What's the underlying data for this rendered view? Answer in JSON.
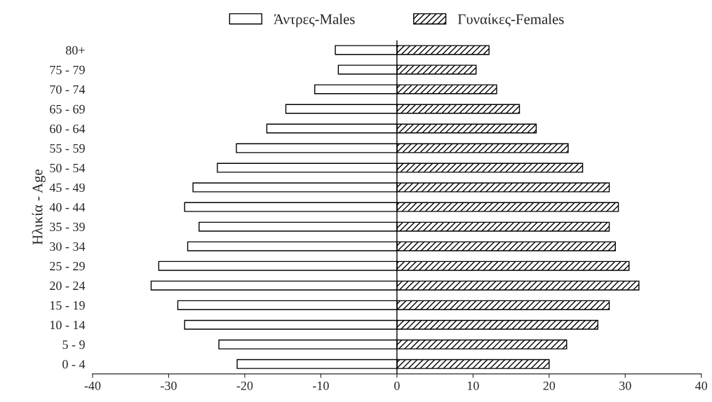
{
  "chart_data": {
    "type": "bar",
    "orientation": "horizontal",
    "ylabel": "Ηλικία - Age",
    "categories": [
      "80+",
      "75 - 79",
      "70 - 74",
      "65 - 69",
      "60 - 64",
      "55 - 59",
      "50 - 54",
      "45 - 49",
      "40 - 44",
      "35 - 39",
      "30 - 34",
      "25 - 29",
      "20 - 24",
      "15 - 19",
      "10 - 14",
      "5 - 9",
      "0 - 4"
    ],
    "series": [
      {
        "name": "Άντρες-Males",
        "color": "#ffffff",
        "values": [
          -8.1,
          -7.7,
          -10.8,
          -14.6,
          -17.1,
          -21.1,
          -23.6,
          -26.8,
          -27.9,
          -26.0,
          -27.5,
          -31.3,
          -32.3,
          -28.8,
          -27.9,
          -23.4,
          -21.0
        ]
      },
      {
        "name": "Γυναίκες-Females",
        "color": "#000000",
        "values": [
          12.1,
          10.4,
          13.1,
          16.1,
          18.3,
          22.5,
          24.4,
          27.9,
          29.1,
          27.9,
          28.7,
          30.5,
          31.8,
          27.9,
          26.4,
          22.3,
          20.0
        ]
      }
    ],
    "xlim": [
      -40,
      40
    ],
    "xticks": [
      -40,
      -30,
      -20,
      -10,
      0,
      10,
      20,
      30,
      40
    ],
    "ref_lines": [
      {
        "axis": "x",
        "value": 0,
        "color": "#000000"
      }
    ],
    "stacked": true,
    "grid": false,
    "legend": "top"
  }
}
